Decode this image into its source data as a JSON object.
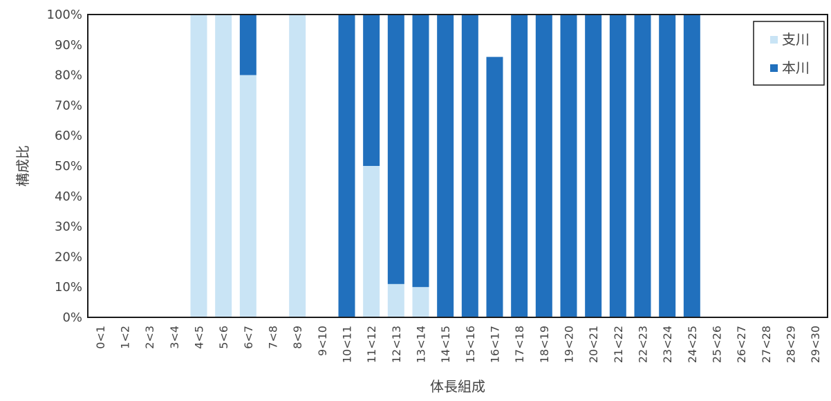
{
  "chart_data": {
    "type": "bar",
    "stacked": true,
    "percent_stacked": true,
    "ylabel": "構成比",
    "xlabel": "体長組成",
    "ylim": [
      0,
      100
    ],
    "yticks": [
      "0%",
      "10%",
      "20%",
      "30%",
      "40%",
      "50%",
      "60%",
      "70%",
      "80%",
      "90%",
      "100%"
    ],
    "categories": [
      "0<1",
      "1<2",
      "2<3",
      "3<4",
      "4<5",
      "5<6",
      "6<7",
      "7<8",
      "8<9",
      "9<10",
      "10<11",
      "11<12",
      "12<13",
      "13<14",
      "14<15",
      "15<16",
      "16<17",
      "17<18",
      "18<19",
      "19<20",
      "20<21",
      "21<22",
      "22<23",
      "23<24",
      "24<25",
      "25<26",
      "26<27",
      "27<28",
      "28<29",
      "29<30"
    ],
    "series": [
      {
        "name": "支川",
        "color": "#c9e4f5",
        "values": [
          0,
          0,
          0,
          0,
          100,
          100,
          80,
          0,
          100,
          0,
          0,
          50,
          11,
          10,
          0,
          0,
          0,
          0,
          0,
          0,
          0,
          0,
          0,
          0,
          0,
          0,
          0,
          0,
          0,
          0
        ]
      },
      {
        "name": "本川",
        "color": "#2170bd",
        "values": [
          0,
          0,
          0,
          0,
          0,
          0,
          20,
          0,
          0,
          0,
          100,
          50,
          89,
          90,
          100,
          100,
          86,
          100,
          100,
          100,
          100,
          100,
          100,
          100,
          100,
          0,
          0,
          0,
          0,
          0
        ]
      }
    ],
    "legend": {
      "position": "top-right",
      "items": [
        "支川",
        "本川"
      ]
    },
    "grid": false
  }
}
